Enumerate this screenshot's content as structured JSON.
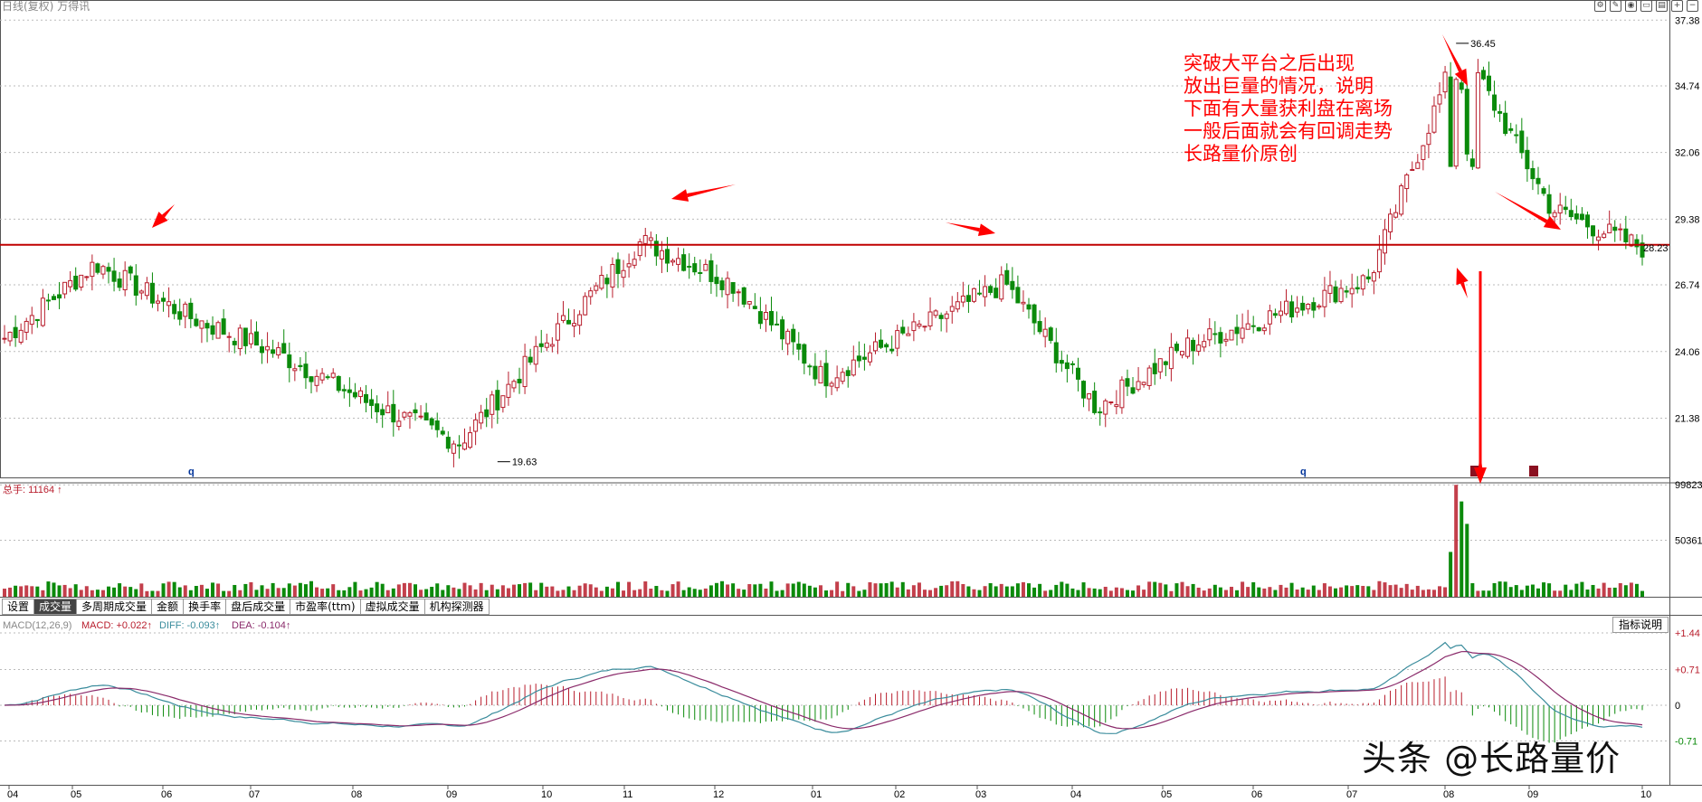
{
  "header": {
    "title": "日线(复权)",
    "subtitle": "万得讯"
  },
  "toolbar_icons": [
    "settings-icon",
    "pen-icon",
    "eye-icon",
    "trash-icon",
    "export-icon",
    "zoom-in-icon",
    "zoom-out-icon"
  ],
  "annotation_lines": [
    "突破大平台之后出现",
    "放出巨量的情况，说明",
    "下面有大量获利盘在离场",
    "一般后面就会有回调走势",
    "长路量价原创"
  ],
  "price_panel": {
    "y_ticks": [
      "37.38",
      "34.74",
      "32.06",
      "29.38",
      "26.74",
      "24.06",
      "21.38"
    ],
    "high_label": "36.45",
    "low_label": "19.63",
    "last_label": "28.23",
    "platform_price": 28.35,
    "markers": [
      "q",
      "q"
    ]
  },
  "volume_panel": {
    "label": "总手: 11164",
    "label_arrow": "↑",
    "y_ticks": [
      "99823",
      "50361"
    ]
  },
  "tabs": [
    {
      "label": "设置",
      "active": false
    },
    {
      "label": "成交量",
      "active": true
    },
    {
      "label": "多周期成交量",
      "active": false
    },
    {
      "label": "金额",
      "active": false
    },
    {
      "label": "换手率",
      "active": false
    },
    {
      "label": "盘后成交量",
      "active": false
    },
    {
      "label": "市盈率(ttm)",
      "active": false
    },
    {
      "label": "虚拟成交量",
      "active": false
    },
    {
      "label": "机构探测器",
      "active": false
    }
  ],
  "macd_panel": {
    "params": "MACD(12,26,9)",
    "macd": "MACD: +0.022↑",
    "diff": "DIFF: -0.093↑",
    "dea": "DEA: -0.104↑",
    "help_button": "指标说明",
    "y_ticks": [
      "+1.44",
      "+0.71",
      "0",
      "-0.71"
    ]
  },
  "x_axis": [
    "04",
    "05",
    "06",
    "07",
    "08",
    "09",
    "10",
    "11",
    "12",
    "01",
    "02",
    "03",
    "04",
    "05",
    "06",
    "07",
    "08",
    "09",
    "10"
  ],
  "watermark": "头条 @长路量价",
  "colors": {
    "up": "#b81d2c",
    "down": "#0b8a0b",
    "platform": "#c00000",
    "annot": "#ff0000",
    "diff": "#3a8c9c",
    "dea": "#8a2a6a"
  },
  "chart_data": {
    "type": "candlestick",
    "price_ylim": [
      19.0,
      37.9
    ],
    "price_path_key_points": [
      {
        "x": "04",
        "price": 24.6
      },
      {
        "x": "05",
        "price": 27.6
      },
      {
        "x": "06",
        "price": 25.5
      },
      {
        "x": "07",
        "price": 24.0
      },
      {
        "x": "08",
        "price": 22.0
      },
      {
        "x": "09",
        "price": 20.4
      },
      {
        "x": "10",
        "price": 24.6
      },
      {
        "x": "11",
        "price": 28.5
      },
      {
        "x": "12",
        "price": 26.8
      },
      {
        "x": "01",
        "price": 23.0
      },
      {
        "x": "02",
        "price": 24.9
      },
      {
        "x": "03",
        "price": 26.8
      },
      {
        "x": "04",
        "price": 21.8
      },
      {
        "x": "05",
        "price": 24.3
      },
      {
        "x": "06",
        "price": 25.6
      },
      {
        "x": "07",
        "price": 27.0
      },
      {
        "x": "08",
        "price": 36.45
      },
      {
        "x": "09",
        "price": 29.8
      },
      {
        "x": "10",
        "price": 28.23
      }
    ],
    "volume_ylim": [
      0,
      100000
    ],
    "volume_peak": 99823,
    "macd_ylim": [
      -1.44,
      1.44
    ]
  }
}
